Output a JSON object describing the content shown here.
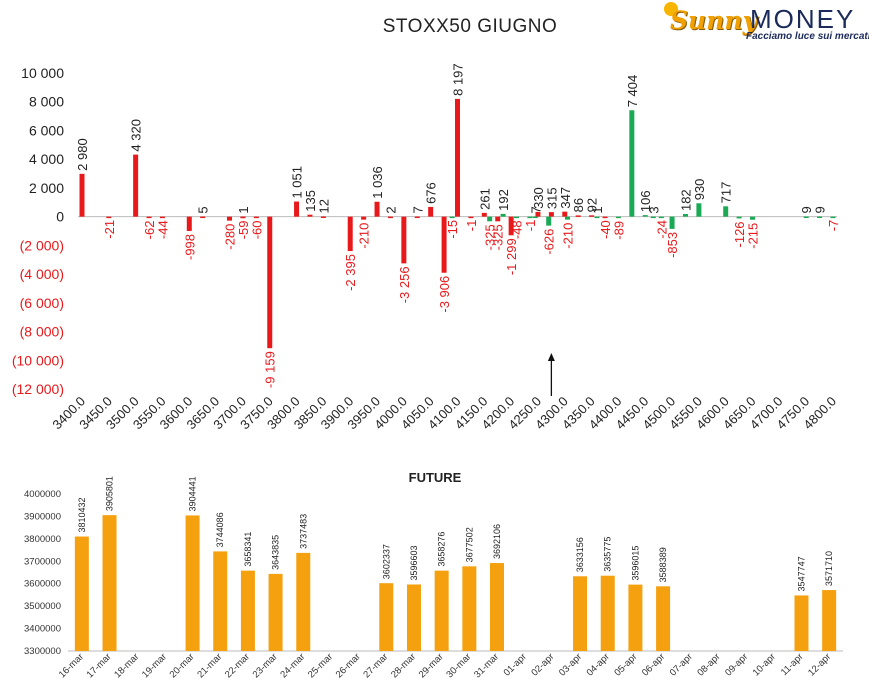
{
  "logo": {
    "script": "Sunny",
    "brand": "MONEY",
    "tagline": "Facciamo luce sui mercati"
  },
  "colors": {
    "positive": "#1aaa55",
    "negative": "#e8191b",
    "future": "#f5a00e",
    "axis_neg_label": "#e8191b"
  },
  "chart_data": [
    {
      "type": "bar",
      "title": "STOXX50 GIUGNO",
      "xlabel": "",
      "ylabel": "",
      "ylim": [
        -12000,
        10000
      ],
      "yticks": [
        10000,
        8000,
        6000,
        4000,
        2000,
        0,
        -2000,
        -4000,
        -6000,
        -8000,
        -10000,
        -12000
      ],
      "ytick_labels": [
        "10 000",
        "8 000",
        "6 000",
        "4 000",
        "2 000",
        "0",
        "(2 000)",
        "(4 000)",
        "(6 000)",
        "(8 000)",
        "(10 000)",
        "(12 000)"
      ],
      "x_tick_labels": [
        "3400.0",
        "3450.0",
        "3500.0",
        "3550.0",
        "3600.0",
        "3650.0",
        "3700.0",
        "3750.0",
        "3800.0",
        "3850.0",
        "3900.0",
        "3950.0",
        "4000.0",
        "4050.0",
        "4100.0",
        "4150.0",
        "4200.0",
        "4250.0",
        "4300.0",
        "4350.0",
        "4400.0",
        "4450.0",
        "4500.0",
        "4550.0",
        "4600.0",
        "4650.0",
        "4700.0",
        "4750.0",
        "4800.0"
      ],
      "grid": false,
      "annotation": "arrow at 4275 (current price)",
      "series": [
        {
          "color": "#e8191b",
          "points": [
            {
              "x": 3400,
              "y": 2980,
              "label": "2 980"
            },
            {
              "x": 3450,
              "y": -21,
              "label": "-21"
            },
            {
              "x": 3500,
              "y": 4320,
              "label": "4 320"
            },
            {
              "x": 3525,
              "y": -62,
              "label": "-62"
            },
            {
              "x": 3550,
              "y": -44,
              "label": "-44"
            },
            {
              "x": 3600,
              "y": -998,
              "label": "-998"
            },
            {
              "x": 3625,
              "y": 5,
              "label": "5"
            },
            {
              "x": 3675,
              "y": -280,
              "label": "-280"
            },
            {
              "x": 3700,
              "y": -59,
              "label": "-59"
            },
            {
              "x": 3700,
              "y": 1,
              "label": "1"
            },
            {
              "x": 3725,
              "y": -60,
              "label": "-60"
            },
            {
              "x": 3750,
              "y": -9159,
              "label": "-9 159"
            },
            {
              "x": 3800,
              "y": 1051,
              "label": "1 051"
            },
            {
              "x": 3825,
              "y": 135,
              "label": "135"
            },
            {
              "x": 3850,
              "y": 12,
              "label": "12"
            },
            {
              "x": 3900,
              "y": -2395,
              "label": "-2 395"
            },
            {
              "x": 3925,
              "y": -210,
              "label": "-210"
            },
            {
              "x": 3950,
              "y": 1036,
              "label": "1 036"
            },
            {
              "x": 3975,
              "y": 2,
              "label": "2"
            },
            {
              "x": 4000,
              "y": -3256,
              "label": "-3 256"
            },
            {
              "x": 4025,
              "y": 7,
              "label": "7"
            },
            {
              "x": 4050,
              "y": 676,
              "label": "676"
            },
            {
              "x": 4075,
              "y": -3906,
              "label": "-3 906"
            },
            {
              "x": 4100,
              "y": 8197,
              "label": "8 197"
            },
            {
              "x": 4125,
              "y": -1,
              "label": "-1"
            },
            {
              "x": 4150,
              "y": 261,
              "label": "261"
            },
            {
              "x": 4175,
              "y": -325,
              "label": "-325"
            },
            {
              "x": 4200,
              "y": -1299,
              "label": "-1 299"
            },
            {
              "x": 4250,
              "y": 330,
              "label": "330"
            },
            {
              "x": 4275,
              "y": 315,
              "label": "315"
            },
            {
              "x": 4300,
              "y": 347,
              "label": "347"
            },
            {
              "x": 4325,
              "y": 86,
              "label": "86"
            },
            {
              "x": 4350,
              "y": 92,
              "label": "92"
            },
            {
              "x": 4375,
              "y": -40,
              "label": "-40"
            }
          ]
        },
        {
          "color": "#1aaa55",
          "points": [
            {
              "x": 4090,
              "y": -15,
              "label": "-15"
            },
            {
              "x": 4160,
              "y": -325,
              "label": "-325"
            },
            {
              "x": 4185,
              "y": 192,
              "label": "192"
            },
            {
              "x": 4210,
              "y": -48,
              "label": "-48"
            },
            {
              "x": 4235,
              "y": -1,
              "label": "-1"
            },
            {
              "x": 4245,
              "y": 7,
              "label": "7"
            },
            {
              "x": 4270,
              "y": -626,
              "label": "-626"
            },
            {
              "x": 4305,
              "y": -210,
              "label": "-210"
            },
            {
              "x": 4360,
              "y": 1,
              "label": "1"
            },
            {
              "x": 4400,
              "y": -89,
              "label": "-89"
            },
            {
              "x": 4425,
              "y": 7404,
              "label": "7 404"
            },
            {
              "x": 4450,
              "y": 106,
              "label": "106"
            },
            {
              "x": 4465,
              "y": 3,
              "label": "3"
            },
            {
              "x": 4480,
              "y": -24,
              "label": "-24"
            },
            {
              "x": 4500,
              "y": -853,
              "label": "-853"
            },
            {
              "x": 4525,
              "y": 182,
              "label": "182"
            },
            {
              "x": 4550,
              "y": 930,
              "label": "930"
            },
            {
              "x": 4600,
              "y": 717,
              "label": "717"
            },
            {
              "x": 4625,
              "y": -126,
              "label": "-126"
            },
            {
              "x": 4650,
              "y": -215,
              "label": "-215"
            },
            {
              "x": 4750,
              "y": 9,
              "label": "9"
            },
            {
              "x": 4775,
              "y": 9,
              "label": "9"
            },
            {
              "x": 4800,
              "y": -7,
              "label": "-7"
            }
          ]
        }
      ]
    },
    {
      "type": "bar",
      "title": "FUTURE",
      "xlabel": "",
      "ylabel": "",
      "ylim": [
        3300000,
        4000000
      ],
      "yticks": [
        3300000,
        3400000,
        3500000,
        3600000,
        3700000,
        3800000,
        3900000,
        4000000
      ],
      "ytick_labels": [
        "3300000",
        "3400000",
        "3500000",
        "3600000",
        "3700000",
        "3800000",
        "3900000",
        "4000000"
      ],
      "grid": false,
      "categories": [
        "16-mar",
        "17-mar",
        "18-mar",
        "19-mar",
        "20-mar",
        "21-mar",
        "22-mar",
        "23-mar",
        "24-mar",
        "25-mar",
        "26-mar",
        "27-mar",
        "28-mar",
        "29-mar",
        "30-mar",
        "31-mar",
        "01-apr",
        "02-apr",
        "03-apr",
        "04-apr",
        "05-apr",
        "06-apr",
        "07-apr",
        "08-apr",
        "09-apr",
        "10-apr",
        "11-apr",
        "12-apr"
      ],
      "values": [
        3810432,
        3905801,
        null,
        null,
        3904441,
        3744086,
        3658341,
        3643835,
        3737483,
        null,
        null,
        3602337,
        3596603,
        3658276,
        3677502,
        3692106,
        null,
        null,
        3633156,
        3635775,
        3596015,
        3588389,
        null,
        null,
        null,
        null,
        3547747,
        3571710
      ],
      "value_labels": [
        "3810432",
        "3905801",
        "",
        "",
        "3904441",
        "3744086",
        "3658341",
        "3643835",
        "3737483",
        "",
        "",
        "3602337",
        "3596603",
        "3658276",
        "3677502",
        "3692106",
        "",
        "",
        "3633156",
        "3635775",
        "3596015",
        "3588389",
        "",
        "",
        "",
        "",
        "3547747",
        "3571710"
      ]
    }
  ]
}
